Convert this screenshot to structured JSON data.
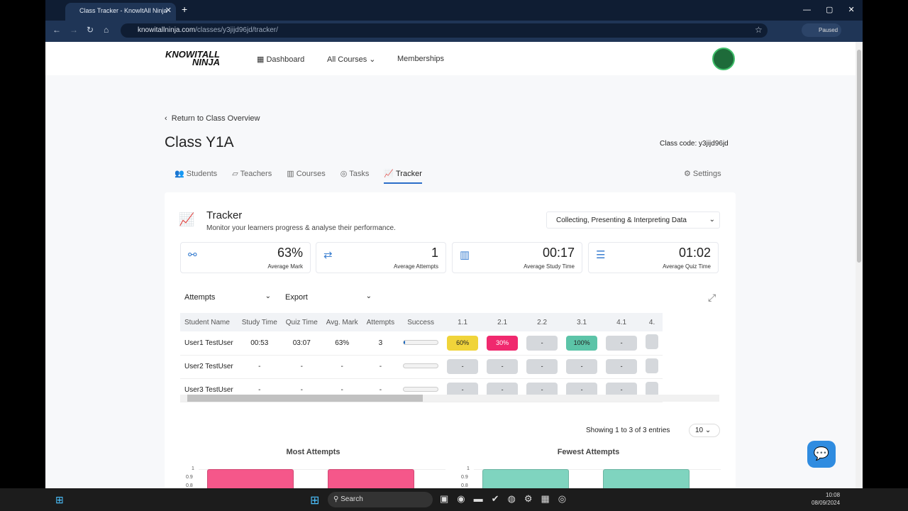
{
  "browser": {
    "tab_title": "Class Tracker - KnowItAll Ninja",
    "url_host": "knowitallninja.com",
    "url_path": "/classes/y3jijd96jd/tracker/",
    "profile": "Paused"
  },
  "header": {
    "logo": "KNOWITALL NINJA",
    "nav": [
      "Dashboard",
      "All Courses",
      "Memberships"
    ]
  },
  "page": {
    "back_link": "Return to Class Overview",
    "title": "Class Y1A",
    "class_code_label": "Class code:",
    "class_code": "y3jijd96jd",
    "tabs": [
      "Students",
      "Teachers",
      "Courses",
      "Tasks",
      "Tracker"
    ],
    "active_tab": "Tracker",
    "settings": "Settings"
  },
  "tracker": {
    "title": "Tracker",
    "subtitle": "Monitor your learners progress & analyse their performance.",
    "course_select": "Collecting, Presenting & Interpreting Data",
    "stats": [
      {
        "value": "63%",
        "label": "Average Mark"
      },
      {
        "value": "1",
        "label": "Average Attempts"
      },
      {
        "value": "00:17",
        "label": "Average Study Time"
      },
      {
        "value": "01:02",
        "label": "Average Quiz Time"
      }
    ],
    "view_select": "Attempts",
    "export_select": "Export",
    "columns": [
      "Student Name",
      "Study Time",
      "Quiz Time",
      "Avg. Mark",
      "Attempts",
      "Success",
      "1.1",
      "2.1",
      "2.2",
      "3.1",
      "4.1",
      "4."
    ],
    "rows": [
      {
        "name": "User1 TestUser",
        "study": "00:53",
        "quiz": "03:07",
        "mark": "63%",
        "attempts": "3",
        "success": 0.05,
        "scores": [
          "60%",
          "30%",
          "-",
          "100%",
          "-",
          ""
        ]
      },
      {
        "name": "User2 TestUser",
        "study": "-",
        "quiz": "-",
        "mark": "-",
        "attempts": "-",
        "success": 0,
        "scores": [
          "-",
          "-",
          "-",
          "-",
          "-",
          ""
        ]
      },
      {
        "name": "User3 TestUser",
        "study": "-",
        "quiz": "-",
        "mark": "-",
        "attempts": "-",
        "success": 0,
        "scores": [
          "-",
          "-",
          "-",
          "-",
          "-",
          ""
        ]
      }
    ],
    "score_colors": {
      "60%": "#f0d43a",
      "30%": "#f0296e",
      "100%": "#5cc4a8"
    },
    "entries_text": "Showing 1 to 3 of 3 entries",
    "page_size": "10"
  },
  "charts": [
    {
      "title": "Most Attempts",
      "yticks": [
        "1",
        "0.9",
        "0.8"
      ],
      "color": "#f5578a",
      "values": [
        1,
        1
      ]
    },
    {
      "title": "Fewest Attempts",
      "yticks": [
        "1",
        "0.9",
        "0.8"
      ],
      "color": "#7fd4bf",
      "values": [
        1,
        1
      ]
    }
  ],
  "taskbar": {
    "search": "Search",
    "time": "10:08",
    "date": "08/09/2024"
  }
}
